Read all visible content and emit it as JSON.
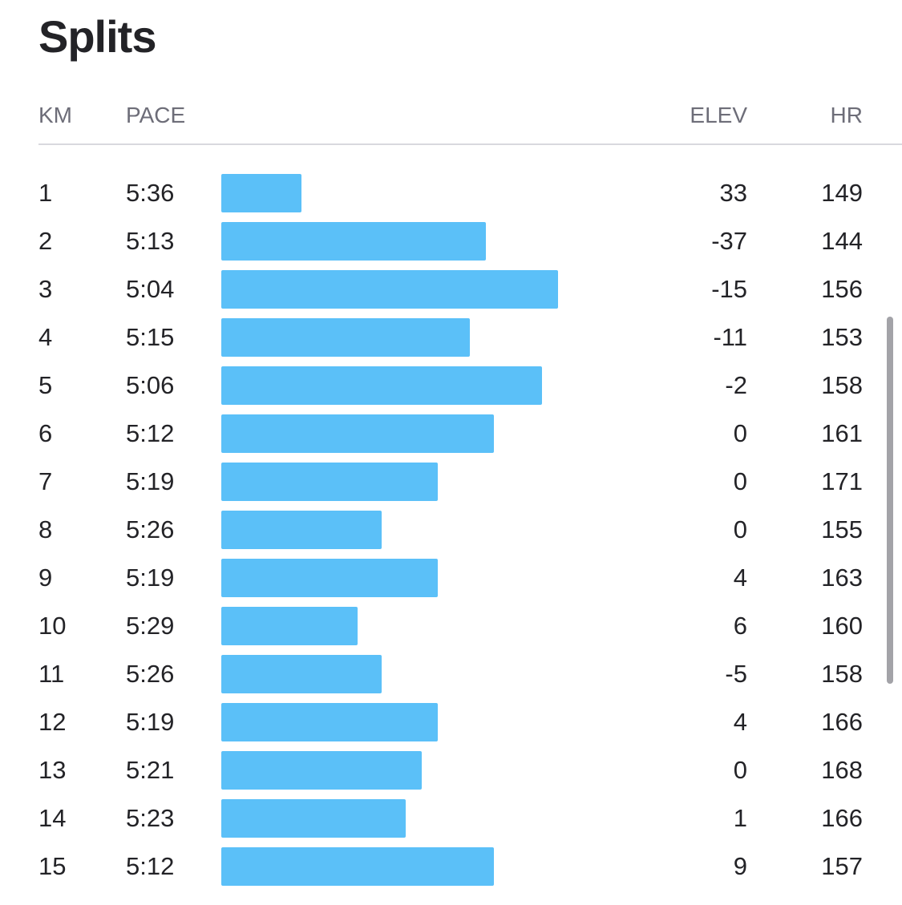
{
  "title": "Splits",
  "columns": {
    "km": "KM",
    "pace": "PACE",
    "elev": "ELEV",
    "hr": "HR"
  },
  "colors": {
    "bar": "#5bc0f8"
  },
  "pace_scale_seconds": {
    "min": 290,
    "max": 346
  },
  "splits": [
    {
      "km": "1",
      "pace": "5:36",
      "pace_seconds": 336,
      "elev": "33",
      "hr": "149"
    },
    {
      "km": "2",
      "pace": "5:13",
      "pace_seconds": 313,
      "elev": "-37",
      "hr": "144"
    },
    {
      "km": "3",
      "pace": "5:04",
      "pace_seconds": 304,
      "elev": "-15",
      "hr": "156"
    },
    {
      "km": "4",
      "pace": "5:15",
      "pace_seconds": 315,
      "elev": "-11",
      "hr": "153"
    },
    {
      "km": "5",
      "pace": "5:06",
      "pace_seconds": 306,
      "elev": "-2",
      "hr": "158"
    },
    {
      "km": "6",
      "pace": "5:12",
      "pace_seconds": 312,
      "elev": "0",
      "hr": "161"
    },
    {
      "km": "7",
      "pace": "5:19",
      "pace_seconds": 319,
      "elev": "0",
      "hr": "171"
    },
    {
      "km": "8",
      "pace": "5:26",
      "pace_seconds": 326,
      "elev": "0",
      "hr": "155"
    },
    {
      "km": "9",
      "pace": "5:19",
      "pace_seconds": 319,
      "elev": "4",
      "hr": "163"
    },
    {
      "km": "10",
      "pace": "5:29",
      "pace_seconds": 329,
      "elev": "6",
      "hr": "160"
    },
    {
      "km": "11",
      "pace": "5:26",
      "pace_seconds": 326,
      "elev": "-5",
      "hr": "158"
    },
    {
      "km": "12",
      "pace": "5:19",
      "pace_seconds": 319,
      "elev": "4",
      "hr": "166"
    },
    {
      "km": "13",
      "pace": "5:21",
      "pace_seconds": 321,
      "elev": "0",
      "hr": "168"
    },
    {
      "km": "14",
      "pace": "5:23",
      "pace_seconds": 323,
      "elev": "1",
      "hr": "166"
    },
    {
      "km": "15",
      "pace": "5:12",
      "pace_seconds": 312,
      "elev": "9",
      "hr": "157"
    }
  ]
}
